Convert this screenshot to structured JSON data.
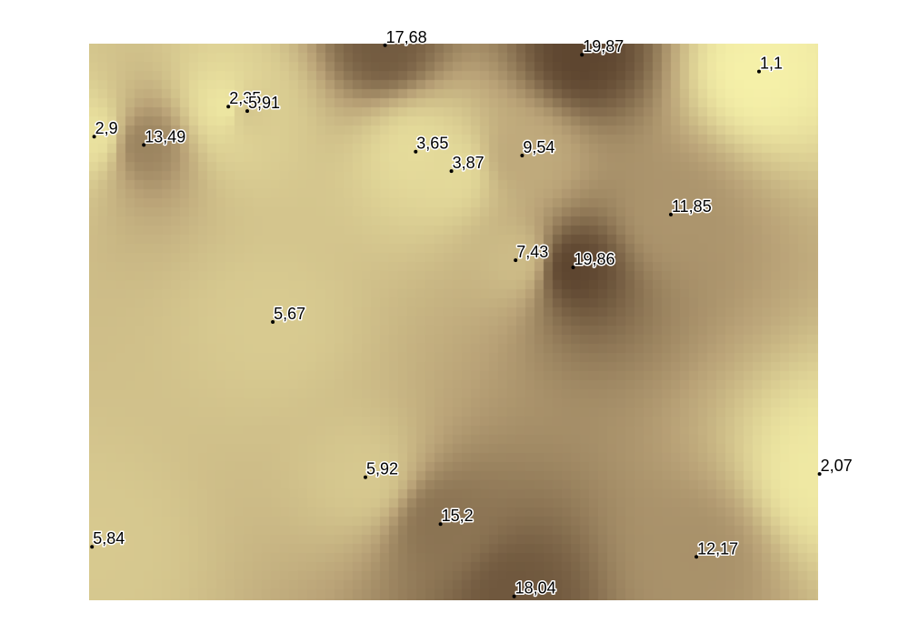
{
  "chart_data": {
    "type": "heatmap",
    "title": "",
    "xlabel": "",
    "ylabel": "",
    "xlim": [
      0,
      1
    ],
    "ylim": [
      0,
      1
    ],
    "grid": false,
    "legend": "none",
    "colormap": {
      "low": "#f5f0a8",
      "mid": "#b9a277",
      "high": "#5e4630",
      "vmin": 1.1,
      "vmax": 19.87
    },
    "points": [
      {
        "label": "17,68",
        "value": 17.68,
        "x": 0.406,
        "y": 0.997
      },
      {
        "label": "19,87",
        "value": 19.87,
        "x": 0.676,
        "y": 0.98
      },
      {
        "label": "1,1",
        "value": 1.1,
        "x": 0.919,
        "y": 0.95
      },
      {
        "label": "2,35",
        "value": 2.35,
        "x": 0.191,
        "y": 0.887
      },
      {
        "label": "5,91",
        "value": 5.91,
        "x": 0.217,
        "y": 0.879
      },
      {
        "label": "2,9",
        "value": 2.9,
        "x": 0.007,
        "y": 0.833
      },
      {
        "label": "13,49",
        "value": 13.49,
        "x": 0.075,
        "y": 0.818
      },
      {
        "label": "3,65",
        "value": 3.65,
        "x": 0.448,
        "y": 0.806
      },
      {
        "label": "9,54",
        "value": 9.54,
        "x": 0.594,
        "y": 0.799
      },
      {
        "label": "3,87",
        "value": 3.87,
        "x": 0.497,
        "y": 0.771
      },
      {
        "label": "11,85",
        "value": 11.85,
        "x": 0.798,
        "y": 0.693
      },
      {
        "label": "7,43",
        "value": 7.43,
        "x": 0.585,
        "y": 0.611
      },
      {
        "label": "19,86",
        "value": 19.86,
        "x": 0.664,
        "y": 0.598
      },
      {
        "label": "5,67",
        "value": 5.67,
        "x": 0.252,
        "y": 0.5
      },
      {
        "label": "2,07",
        "value": 2.07,
        "x": 1.002,
        "y": 0.227
      },
      {
        "label": "5,92",
        "value": 5.92,
        "x": 0.379,
        "y": 0.221
      },
      {
        "label": "15,2",
        "value": 15.2,
        "x": 0.482,
        "y": 0.137
      },
      {
        "label": "5,84",
        "value": 5.84,
        "x": 0.004,
        "y": 0.096
      },
      {
        "label": "12,17",
        "value": 12.17,
        "x": 0.833,
        "y": 0.078
      },
      {
        "label": "18,04",
        "value": 18.04,
        "x": 0.583,
        "y": 0.007
      }
    ]
  }
}
